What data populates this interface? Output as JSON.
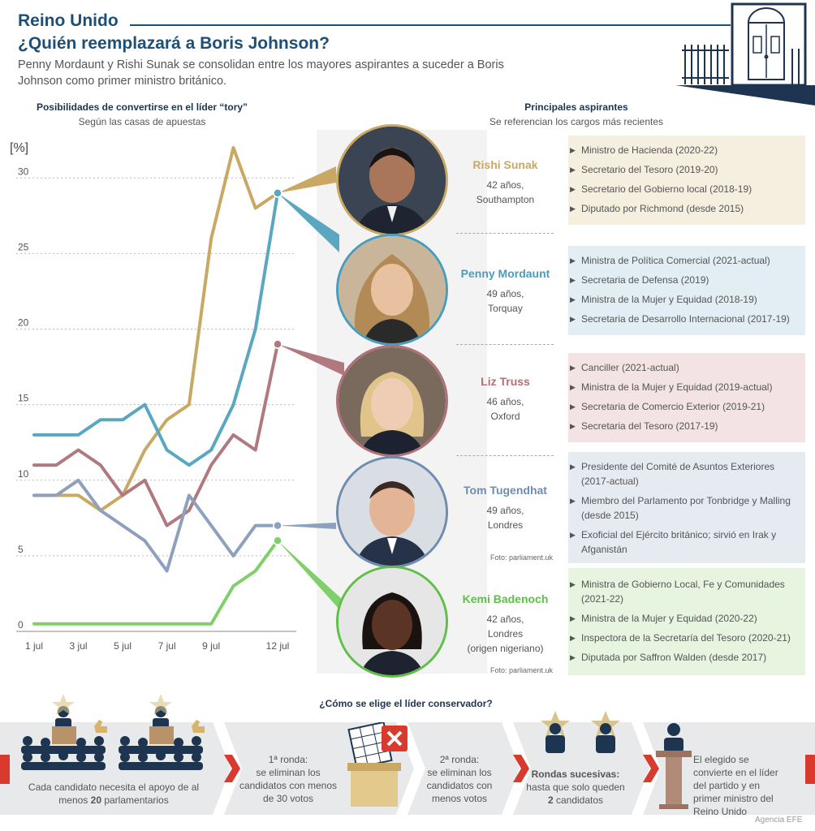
{
  "header": {
    "title": "Reino Unido",
    "question": "¿Quién reemplazará a Boris Johnson?",
    "subtitle": "Penny Mordaunt y Rishi Sunak se consolidan entre los mayores aspirantes a suceder a Boris Johnson como primer ministro británico."
  },
  "chart_title": "Posibilidades de convertirse en el líder “tory”",
  "chart_subtitle": "Según las casas de apuestas",
  "aspirants_title": "Principales aspirantes",
  "aspirants_subtitle": "Se referencian los cargos más recientes",
  "chart_data": {
    "type": "line",
    "ylabel": "[%]",
    "ylim": [
      0,
      32
    ],
    "yticks": [
      "0",
      "5",
      "10",
      "15",
      "20",
      "25",
      "30"
    ],
    "xtick_labels": [
      "1 jul",
      "3 jul",
      "5 jul",
      "7 jul",
      "9 jul",
      "12 jul"
    ],
    "xticks": [
      1,
      3,
      5,
      7,
      9,
      12
    ],
    "x": [
      1,
      2,
      3,
      4,
      5,
      6,
      7,
      8,
      9,
      10,
      11,
      12
    ],
    "series": [
      {
        "name": "Rishi Sunak",
        "color": "#c9a864",
        "values": [
          9,
          9,
          9,
          8,
          9,
          12,
          14,
          15,
          26,
          32,
          28,
          29
        ]
      },
      {
        "name": "Penny Mordaunt",
        "color": "#5aa7c1",
        "values": [
          13,
          13,
          13,
          14,
          14,
          15,
          12,
          11,
          12,
          15,
          20,
          29
        ]
      },
      {
        "name": "Liz Truss",
        "color": "#b07980",
        "values": [
          11,
          11,
          12,
          11,
          9,
          10,
          7,
          8,
          11,
          13,
          12,
          19
        ]
      },
      {
        "name": "Tom Tugendhat",
        "color": "#8da1bf",
        "values": [
          9,
          9,
          10,
          8,
          7,
          6,
          4,
          9,
          7,
          5,
          7,
          7
        ]
      },
      {
        "name": "Kemi Badenoch",
        "color": "#7fcf6b",
        "values": [
          0.5,
          0.5,
          0.5,
          0.5,
          0.5,
          0.5,
          0.5,
          0.5,
          0.5,
          3,
          4,
          6
        ]
      }
    ]
  },
  "candidates": [
    {
      "name": "Rishi Sunak",
      "age": "42 años,",
      "city": "Southampton",
      "color": "#c9a864",
      "bg": "#f5efe0",
      "roles": [
        "Ministro de Hacienda (2020-22)",
        "Secretario del Tesoro (2019-20)",
        "Secretario del Gobierno local (2018-19)",
        "Diputado por Richmond (desde 2015)"
      ]
    },
    {
      "name": "Penny Mordaunt",
      "age": "49 años,",
      "city": "Torquay",
      "color": "#4a9cbd",
      "bg": "#e2eef3",
      "roles": [
        "Ministra de Política Comercial (2021-actual)",
        "Secretaria de Defensa (2019)",
        "Ministra de la Mujer y Equidad (2018-19)",
        "Secretaria de Desarrollo Internacional (2017-19)"
      ]
    },
    {
      "name": "Liz Truss",
      "age": "46 años,",
      "city": "Oxford",
      "color": "#b07077",
      "bg": "#f3e3e4",
      "roles": [
        "Canciller (2021-actual)",
        "Ministra de la Mujer y Equidad (2019-actual)",
        "Secretaria de Comercio Exterior (2019-21)",
        "Secretaria del Tesoro (2017-19)"
      ]
    },
    {
      "name": "Tom Tugendhat",
      "age": "49 años,",
      "city": "Londres",
      "color": "#6f8cb0",
      "bg": "#e6ebf2",
      "roles": [
        "Presidente del Comité de Asuntos Exteriores (2017-actual)",
        "Miembro del Parlamento por Tonbridge y Malling (desde 2015)",
        "Exoficial del Ejército británico; sirvió en Irak y Afganistán"
      ],
      "credit": "Foto: parliament.uk"
    },
    {
      "name": "Kemi Badenoch",
      "age": "42 años,",
      "city": "Londres",
      "extra": "(origen nigeriano)",
      "color": "#5fbf48",
      "bg": "#e6f4e0",
      "roles": [
        "Ministra de Gobierno Local, Fe y Comunidades (2021-22)",
        "Ministra de la Mujer y Equidad (2020-22)",
        "Inspectora de la Secretaría del Tesoro (2020-21)",
        "Diputada por Saffron Walden (desde 2017)"
      ],
      "credit": "Foto: parliament.uk"
    }
  ],
  "process": {
    "title": "¿Cómo se elige el líder conservador?",
    "step1_pre": "Cada candidato necesita el apoyo de al menos ",
    "step1_num": "20",
    "step1_post": " parlamentarios",
    "step2_title": "1ª ronda:",
    "step2_text": "se eliminan los candidatos con menos de 30 votos",
    "step3_title": "2ª ronda:",
    "step3_text": "se eliminan los candidatos con menos votos",
    "step4_title": "Rondas sucesivas:",
    "step4_pre": "hasta que solo queden",
    "step4_num": "2",
    "step4_post": " candidatos",
    "step5_text": "El elegido se convierte en el líder del partido y en primer ministro del Reino Unido"
  },
  "agency": "Agencia EFE"
}
